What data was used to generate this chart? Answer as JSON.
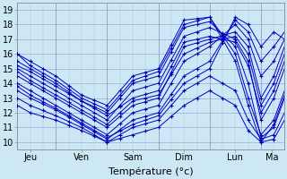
{
  "xlabel": "Température (°c)",
  "bg_color": "#cce8f4",
  "grid_color": "#9999cc",
  "line_color": "#0000cc",
  "marker_color": "#0000aa",
  "xlim": [
    0,
    125
  ],
  "ylim": [
    9.5,
    19.5
  ],
  "yticks": [
    10,
    11,
    12,
    13,
    14,
    15,
    16,
    17,
    18,
    19
  ],
  "day_positions": [
    6,
    30,
    54,
    78,
    102,
    119
  ],
  "day_labels": [
    "Jeu",
    "Ven",
    "Sam",
    "Dim",
    "Lun",
    "Ma"
  ],
  "day_vlines": [
    18,
    42,
    66,
    90,
    114
  ],
  "lines": [
    {
      "key_t": [
        0,
        6,
        18,
        30,
        42,
        54,
        66,
        78,
        90,
        102,
        108,
        114,
        120,
        125
      ],
      "key_v": [
        16.0,
        15.5,
        14.5,
        13.2,
        12.5,
        14.5,
        15.0,
        18.3,
        18.5,
        16.0,
        13.0,
        10.5,
        11.5,
        13.5
      ]
    },
    {
      "key_t": [
        0,
        6,
        18,
        30,
        42,
        54,
        66,
        78,
        90,
        102,
        108,
        114,
        120,
        125
      ],
      "key_v": [
        15.5,
        15.0,
        14.0,
        12.8,
        12.0,
        14.0,
        14.5,
        17.8,
        18.2,
        16.5,
        14.0,
        10.3,
        11.0,
        13.0
      ]
    },
    {
      "key_t": [
        0,
        6,
        18,
        30,
        42,
        54,
        66,
        78,
        90,
        102,
        108,
        114,
        120,
        125
      ],
      "key_v": [
        15.0,
        14.5,
        13.5,
        12.5,
        11.5,
        13.5,
        14.0,
        17.2,
        17.8,
        17.0,
        15.5,
        11.5,
        13.0,
        15.0
      ]
    },
    {
      "key_t": [
        0,
        6,
        18,
        30,
        42,
        54,
        66,
        78,
        90,
        102,
        108,
        114,
        120,
        125
      ],
      "key_v": [
        14.5,
        14.0,
        13.0,
        12.0,
        11.0,
        12.5,
        13.0,
        16.5,
        17.0,
        17.5,
        16.5,
        13.0,
        14.5,
        16.5
      ]
    },
    {
      "key_t": [
        0,
        6,
        18,
        30,
        42,
        54,
        66,
        78,
        90,
        102,
        108,
        114,
        120,
        125
      ],
      "key_v": [
        14.0,
        13.5,
        12.5,
        11.5,
        10.5,
        12.0,
        12.5,
        15.5,
        16.5,
        18.0,
        17.0,
        14.5,
        15.5,
        17.0
      ]
    },
    {
      "key_t": [
        0,
        6,
        18,
        30,
        42,
        54,
        66,
        78,
        90,
        102,
        108,
        114,
        120,
        125
      ],
      "key_v": [
        13.5,
        13.0,
        12.2,
        11.2,
        10.2,
        11.5,
        12.0,
        14.5,
        15.5,
        18.3,
        17.5,
        15.5,
        16.5,
        17.5
      ]
    },
    {
      "key_t": [
        0,
        6,
        18,
        30,
        42,
        54,
        66,
        78,
        90,
        102,
        108,
        114,
        120,
        125
      ],
      "key_v": [
        13.0,
        12.5,
        11.8,
        11.0,
        10.0,
        11.0,
        11.5,
        13.5,
        14.5,
        13.5,
        11.5,
        10.2,
        10.5,
        12.0
      ]
    },
    {
      "key_t": [
        0,
        6,
        18,
        30,
        42,
        54,
        66,
        78,
        90,
        102,
        108,
        114,
        120,
        125
      ],
      "key_v": [
        12.5,
        12.0,
        11.5,
        10.8,
        10.0,
        10.5,
        11.0,
        12.5,
        13.5,
        12.5,
        10.8,
        10.0,
        10.2,
        11.5
      ]
    },
    {
      "key_t": [
        0,
        6,
        18,
        30,
        42,
        54,
        66,
        78,
        90,
        102,
        108,
        114,
        120,
        125
      ],
      "key_v": [
        16.0,
        15.2,
        14.2,
        13.0,
        12.2,
        14.2,
        14.8,
        18.0,
        18.5,
        15.5,
        12.5,
        10.0,
        11.2,
        13.2
      ]
    },
    {
      "key_t": [
        0,
        6,
        18,
        30,
        42,
        54,
        66,
        78,
        90,
        102,
        108,
        114,
        120,
        125
      ],
      "key_v": [
        14.8,
        14.2,
        13.2,
        12.2,
        11.2,
        12.8,
        13.2,
        16.0,
        16.8,
        17.2,
        16.0,
        12.5,
        14.0,
        16.0
      ]
    },
    {
      "key_t": [
        0,
        6,
        18,
        30,
        42,
        54,
        66,
        78,
        90,
        102,
        108,
        114,
        120,
        125
      ],
      "key_v": [
        13.8,
        13.2,
        12.3,
        11.3,
        10.3,
        11.2,
        11.8,
        14.0,
        15.0,
        18.5,
        18.0,
        16.5,
        17.5,
        17.0
      ]
    },
    {
      "key_t": [
        0,
        6,
        18,
        30,
        42,
        54,
        66,
        78,
        90,
        102,
        108,
        114,
        120,
        125
      ],
      "key_v": [
        15.2,
        14.8,
        13.8,
        12.8,
        11.8,
        13.0,
        13.5,
        16.8,
        17.2,
        16.8,
        15.2,
        12.0,
        13.5,
        15.5
      ]
    }
  ],
  "marker_t_step": 6
}
